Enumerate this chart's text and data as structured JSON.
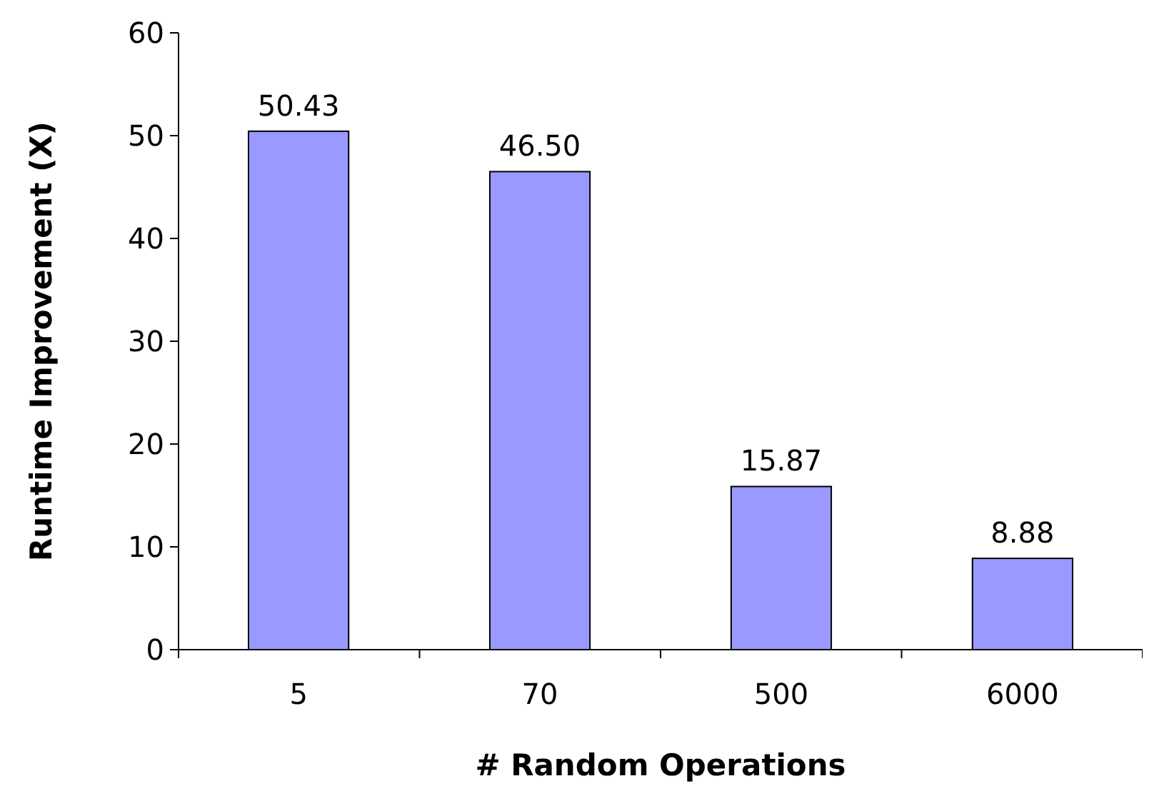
{
  "chart_data": {
    "type": "bar",
    "xlabel": "# Random Operations",
    "ylabel": "Runtime Improvement (X)",
    "categories": [
      "5",
      "70",
      "500",
      "6000"
    ],
    "values": [
      50.43,
      46.5,
      15.87,
      8.88
    ],
    "value_labels": [
      "50.43",
      "46.50",
      "15.87",
      "8.88"
    ],
    "color": "#9999ff",
    "ylim": [
      0,
      60
    ],
    "yticks": [
      0,
      10,
      20,
      30,
      40,
      50,
      60
    ],
    "grid": false
  }
}
